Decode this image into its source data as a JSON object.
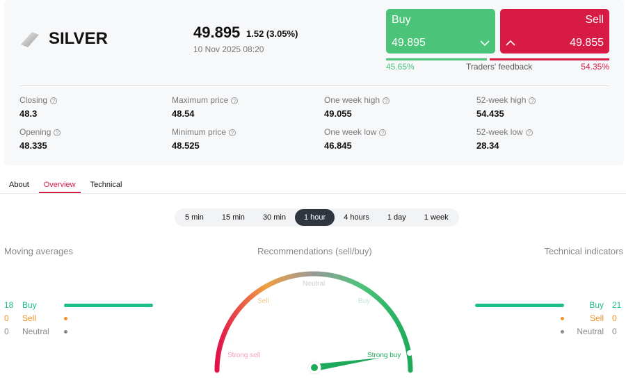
{
  "instrument": {
    "name": "SILVER",
    "icon": "silver-bar-icon",
    "price": "49.895",
    "change": "1.52 (3.05%)",
    "datetime": "10 Nov 2025 08:20"
  },
  "trade": {
    "buy_label": "Buy",
    "buy_price": "49.895",
    "sell_label": "Sell",
    "sell_price": "49.855",
    "buy_pct": "45.65%",
    "sell_pct": "54.35%",
    "buy_fraction": 45.65,
    "feedback_label": "Traders' feedback",
    "buy_color": "#4bc47a",
    "sell_color": "#d81b45"
  },
  "stats": [
    {
      "label": "Closing",
      "value": "48.3"
    },
    {
      "label": "Maximum price",
      "value": "48.54"
    },
    {
      "label": "One week high",
      "value": "49.055"
    },
    {
      "label": "52-week high",
      "value": "54.435"
    },
    {
      "label": "Opening",
      "value": "48.335"
    },
    {
      "label": "Minimum price",
      "value": "48.525"
    },
    {
      "label": "One week low",
      "value": "46.845"
    },
    {
      "label": "52-week low",
      "value": "28.34"
    }
  ],
  "tabs": [
    "About",
    "Overview",
    "Technical"
  ],
  "active_tab": "Overview",
  "periods": [
    "5 min",
    "15 min",
    "30 min",
    "1 hour",
    "4 hours",
    "1 day",
    "1 week"
  ],
  "active_period": "1 hour",
  "moving_averages": {
    "title": "Moving averages",
    "buy": {
      "count": "18",
      "label": "Buy"
    },
    "sell": {
      "count": "0",
      "label": "Sell"
    },
    "neutral": {
      "count": "0",
      "label": "Neutral"
    }
  },
  "technical_indicators": {
    "title": "Technical indicators",
    "buy": {
      "count": "21",
      "label": "Buy"
    },
    "sell": {
      "count": "0",
      "label": "Sell"
    },
    "neutral": {
      "count": "0",
      "label": "Neutral"
    }
  },
  "gauge": {
    "title": "Recommendations (sell/buy)",
    "labels": {
      "strong_sell": "Strong sell",
      "sell": "Sell",
      "neutral": "Neutral",
      "buy": "Buy",
      "strong_buy": "Strong buy"
    },
    "reading": "Strong buy"
  }
}
